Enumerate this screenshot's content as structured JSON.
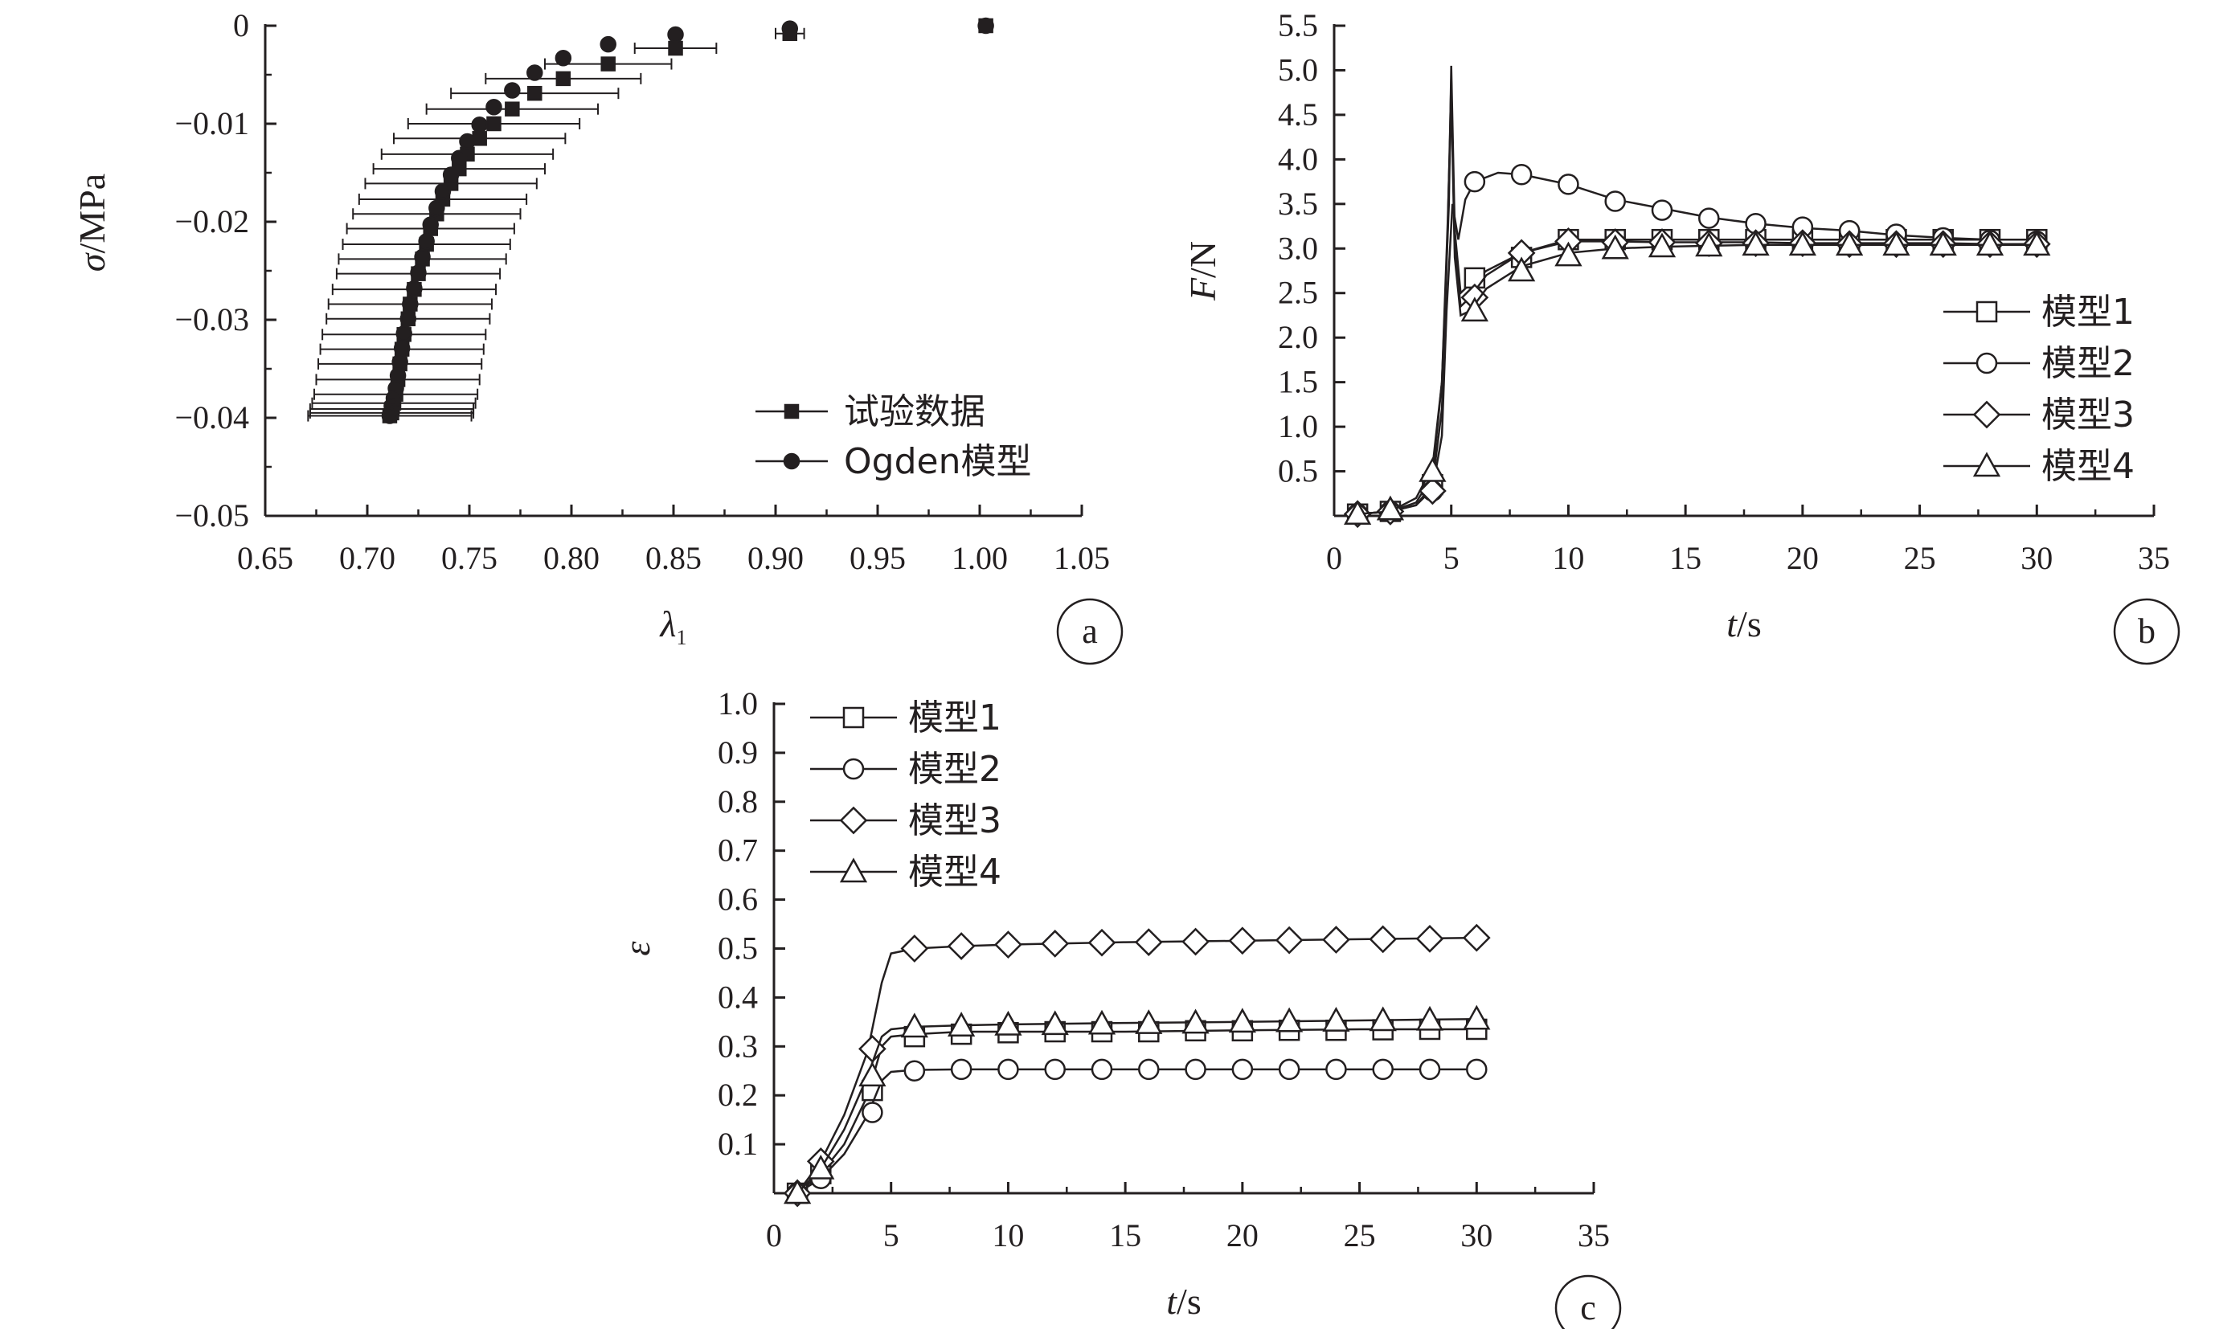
{
  "chart_data": [
    {
      "id": "a",
      "type": "scatter",
      "panel_label": "a",
      "xlabel_sym": "λ",
      "xlabel_sub": "1",
      "ylabel_sym": "σ",
      "ylabel_unit": "/MPa",
      "xlim": [
        0.65,
        1.05
      ],
      "ylim": [
        -0.05,
        0
      ],
      "xticks": [
        0.65,
        0.7,
        0.75,
        0.8,
        0.85,
        0.9,
        0.95,
        1.0,
        1.05
      ],
      "xtick_labels": [
        "0.65",
        "0.70",
        "0.75",
        "0.80",
        "0.85",
        "0.90",
        "0.95",
        "1.00",
        "1.05"
      ],
      "yticks": [
        0,
        -0.01,
        -0.02,
        -0.03,
        -0.04,
        -0.05
      ],
      "ytick_labels": [
        "0",
        "−0.01",
        "−0.02",
        "−0.03",
        "−0.04",
        "−0.05"
      ],
      "legend": {
        "position": "bottom-right",
        "entries": [
          "试验数据",
          "Ogden模型"
        ]
      },
      "series": [
        {
          "name": "试验数据",
          "marker": "square",
          "filled": true,
          "x": [
            1.003,
            0.907,
            0.851,
            0.818,
            0.796,
            0.782,
            0.771,
            0.762,
            0.755,
            0.749,
            0.745,
            0.741,
            0.737,
            0.734,
            0.731,
            0.729,
            0.727,
            0.725,
            0.723,
            0.721,
            0.72,
            0.718,
            0.717,
            0.716,
            0.715,
            0.714,
            0.713,
            0.712,
            0.712,
            0.711
          ],
          "y": [
            0.0,
            -0.0008,
            -0.0023,
            -0.0039,
            -0.0054,
            -0.0069,
            -0.0085,
            -0.01,
            -0.0115,
            -0.0131,
            -0.0146,
            -0.0161,
            -0.0177,
            -0.0192,
            -0.0207,
            -0.0223,
            -0.0238,
            -0.0253,
            -0.0269,
            -0.0284,
            -0.0299,
            -0.0315,
            -0.033,
            -0.0345,
            -0.0361,
            -0.0376,
            -0.0385,
            -0.0391,
            -0.0395,
            -0.0398
          ],
          "xerr": [
            0.0,
            0.007,
            0.02,
            0.031,
            0.038,
            0.041,
            0.042,
            0.042,
            0.042,
            0.042,
            0.042,
            0.042,
            0.041,
            0.041,
            0.041,
            0.041,
            0.041,
            0.04,
            0.04,
            0.04,
            0.04,
            0.04,
            0.04,
            0.04,
            0.04,
            0.04,
            0.04,
            0.04,
            0.04,
            0.04
          ]
        },
        {
          "name": "Ogden模型",
          "marker": "circle",
          "filled": true,
          "x": [
            1.003,
            0.907,
            0.851,
            0.818,
            0.796,
            0.782,
            0.771,
            0.762,
            0.755,
            0.749,
            0.745,
            0.741,
            0.737,
            0.734,
            0.731,
            0.729,
            0.727,
            0.725,
            0.723,
            0.721,
            0.72,
            0.718,
            0.717,
            0.716,
            0.715,
            0.714,
            0.713,
            0.712,
            0.712,
            0.711
          ],
          "y": [
            0.0,
            -0.0003,
            -0.0009,
            -0.0019,
            -0.0033,
            -0.0048,
            -0.0066,
            -0.0083,
            -0.0101,
            -0.0118,
            -0.0135,
            -0.0152,
            -0.0169,
            -0.0186,
            -0.0203,
            -0.022,
            -0.0236,
            -0.0252,
            -0.0268,
            -0.0284,
            -0.0299,
            -0.0314,
            -0.0329,
            -0.0343,
            -0.0357,
            -0.037,
            -0.038,
            -0.0388,
            -0.0394,
            -0.0398
          ]
        }
      ]
    },
    {
      "id": "b",
      "type": "line",
      "panel_label": "b",
      "xlabel_sym": "t",
      "xlabel_unit": "/s",
      "ylabel_sym": "F",
      "ylabel_unit": "/N",
      "xlim": [
        0,
        35
      ],
      "ylim": [
        0,
        5.5
      ],
      "xticks": [
        0,
        5,
        10,
        15,
        20,
        25,
        30,
        35
      ],
      "xtick_labels": [
        "0",
        "5",
        "10",
        "15",
        "20",
        "25",
        "30",
        "35"
      ],
      "yticks": [
        0.5,
        1.0,
        1.5,
        2.0,
        2.5,
        3.0,
        3.5,
        4.0,
        4.5,
        5.0,
        5.5
      ],
      "ytick_labels": [
        "0.5",
        "1.0",
        "1.5",
        "2.0",
        "2.5",
        "3.0",
        "3.5",
        "4.0",
        "4.5",
        "5.0",
        "5.5"
      ],
      "legend": {
        "position": "right",
        "entries": [
          "模型1",
          "模型2",
          "模型3",
          "模型4"
        ]
      },
      "series": [
        {
          "name": "模型1",
          "marker": "square",
          "curve_x": [
            1,
            2.4,
            3.5,
            4.2,
            4.6,
            4.9,
            5.0,
            5.15,
            5.4,
            5.8,
            6.5,
            8,
            10,
            12,
            14,
            16,
            18,
            20,
            22,
            24,
            26,
            28,
            30
          ],
          "curve_y": [
            0.02,
            0.05,
            0.15,
            0.45,
            1.5,
            3.5,
            5.05,
            3.2,
            2.5,
            2.6,
            2.75,
            2.95,
            3.1,
            3.1,
            3.1,
            3.1,
            3.1,
            3.1,
            3.1,
            3.1,
            3.1,
            3.1,
            3.1
          ],
          "marker_x": [
            1,
            2.4,
            4.2,
            6,
            8,
            10,
            12,
            14,
            16,
            18,
            20,
            22,
            24,
            26,
            28,
            30
          ],
          "marker_y": [
            0.02,
            0.05,
            0.35,
            2.67,
            2.9,
            3.1,
            3.1,
            3.1,
            3.1,
            3.1,
            3.1,
            3.1,
            3.1,
            3.1,
            3.1,
            3.1
          ]
        },
        {
          "name": "模型2",
          "marker": "circle",
          "curve_x": [
            1,
            2.4,
            3.5,
            4.2,
            4.6,
            4.8,
            5.05,
            5.3,
            5.6,
            6,
            7,
            8,
            10,
            12,
            14,
            16,
            18,
            20,
            22,
            24,
            26,
            28,
            30
          ],
          "curve_y": [
            0.02,
            0.05,
            0.12,
            0.3,
            0.9,
            2.3,
            3.5,
            3.1,
            3.55,
            3.75,
            3.85,
            3.83,
            3.72,
            3.55,
            3.45,
            3.35,
            3.28,
            3.23,
            3.2,
            3.15,
            3.12,
            3.1,
            3.1
          ],
          "marker_x": [
            1,
            2.4,
            4.2,
            6,
            8,
            10,
            12,
            14,
            16,
            18,
            20,
            22,
            24,
            26,
            28,
            30
          ],
          "marker_y": [
            0.02,
            0.05,
            0.28,
            3.75,
            3.83,
            3.72,
            3.53,
            3.43,
            3.34,
            3.28,
            3.24,
            3.2,
            3.16,
            3.12,
            3.09,
            3.08
          ]
        },
        {
          "name": "模型3",
          "marker": "diamond",
          "curve_x": [
            1,
            2.4,
            3.5,
            4.2,
            4.6,
            4.85,
            5.0,
            5.15,
            5.4,
            5.8,
            6.5,
            8,
            10,
            12,
            14,
            16,
            18,
            20,
            22,
            24,
            26,
            28,
            30
          ],
          "curve_y": [
            0.02,
            0.05,
            0.12,
            0.35,
            1.2,
            3.2,
            4.9,
            3.0,
            2.35,
            2.45,
            2.7,
            2.95,
            3.08,
            3.08,
            3.07,
            3.07,
            3.07,
            3.06,
            3.06,
            3.06,
            3.06,
            3.05,
            3.05
          ],
          "marker_x": [
            1,
            2.4,
            4.2,
            6,
            8,
            10,
            12,
            14,
            16,
            18,
            20,
            22,
            24,
            26,
            28,
            30
          ],
          "marker_y": [
            0.02,
            0.05,
            0.28,
            2.45,
            2.95,
            3.08,
            3.07,
            3.07,
            3.06,
            3.06,
            3.06,
            3.05,
            3.05,
            3.05,
            3.05,
            3.05
          ]
        },
        {
          "name": "模型4",
          "marker": "triangle",
          "curve_x": [
            1,
            2.4,
            3.5,
            4.2,
            4.6,
            4.85,
            5.0,
            5.15,
            5.4,
            5.8,
            6.5,
            8,
            10,
            12,
            14,
            16,
            18,
            20,
            22,
            24,
            26,
            28,
            30
          ],
          "curve_y": [
            0.02,
            0.05,
            0.2,
            0.55,
            1.5,
            3.3,
            4.7,
            2.9,
            2.25,
            2.3,
            2.55,
            2.8,
            2.95,
            3.0,
            3.02,
            3.03,
            3.04,
            3.04,
            3.04,
            3.04,
            3.04,
            3.04,
            3.04
          ],
          "marker_x": [
            1,
            2.4,
            4.2,
            6,
            8,
            10,
            12,
            14,
            16,
            18,
            20,
            22,
            24,
            26,
            28,
            30
          ],
          "marker_y": [
            0.02,
            0.07,
            0.5,
            2.3,
            2.75,
            2.92,
            3.0,
            3.02,
            3.03,
            3.04,
            3.04,
            3.04,
            3.04,
            3.04,
            3.04,
            3.04
          ]
        }
      ]
    },
    {
      "id": "c",
      "type": "line",
      "panel_label": "c",
      "xlabel_sym": "t",
      "xlabel_unit": "/s",
      "ylabel_sym": "ε",
      "xlim": [
        0,
        35
      ],
      "ylim": [
        0,
        1.0
      ],
      "xticks": [
        0,
        5,
        10,
        15,
        20,
        25,
        30,
        35
      ],
      "xtick_labels": [
        "0",
        "5",
        "10",
        "15",
        "20",
        "25",
        "30",
        "35"
      ],
      "yticks": [
        0.1,
        0.2,
        0.3,
        0.4,
        0.5,
        0.6,
        0.7,
        0.8,
        0.9,
        1.0
      ],
      "ytick_labels": [
        "0.1",
        "0.2",
        "0.3",
        "0.4",
        "0.5",
        "0.6",
        "0.7",
        "0.8",
        "0.9",
        "1.0"
      ],
      "legend": {
        "position": "top-left",
        "entries": [
          "模型1",
          "模型2",
          "模型3",
          "模型4"
        ]
      },
      "series": [
        {
          "name": "模型1",
          "marker": "square",
          "curve_x": [
            1,
            2,
            3,
            4,
            4.6,
            5,
            6,
            8,
            10,
            15,
            20,
            25,
            30
          ],
          "curve_y": [
            0,
            0.04,
            0.1,
            0.2,
            0.3,
            0.32,
            0.325,
            0.33,
            0.33,
            0.33,
            0.333,
            0.335,
            0.335
          ],
          "marker_x": [
            1,
            2,
            4.2,
            6,
            8,
            10,
            12,
            14,
            16,
            18,
            20,
            22,
            24,
            26,
            28,
            30
          ],
          "marker_y": [
            0,
            0.04,
            0.21,
            0.32,
            0.325,
            0.328,
            0.33,
            0.33,
            0.33,
            0.332,
            0.332,
            0.333,
            0.333,
            0.334,
            0.335,
            0.335
          ]
        },
        {
          "name": "模型2",
          "marker": "circle",
          "curve_x": [
            1,
            2,
            3,
            4,
            4.6,
            5,
            6,
            8,
            10,
            15,
            20,
            25,
            30
          ],
          "curve_y": [
            0,
            0.03,
            0.08,
            0.16,
            0.23,
            0.248,
            0.252,
            0.253,
            0.253,
            0.253,
            0.253,
            0.253,
            0.253
          ],
          "marker_x": [
            1,
            2,
            4.2,
            6,
            8,
            10,
            12,
            14,
            16,
            18,
            20,
            22,
            24,
            26,
            28,
            30
          ],
          "marker_y": [
            0,
            0.03,
            0.165,
            0.25,
            0.253,
            0.253,
            0.253,
            0.253,
            0.253,
            0.253,
            0.253,
            0.253,
            0.253,
            0.253,
            0.253,
            0.253
          ]
        },
        {
          "name": "模型3",
          "marker": "diamond",
          "curve_x": [
            1,
            2,
            3,
            4,
            4.6,
            5,
            6,
            8,
            10,
            15,
            20,
            25,
            30
          ],
          "curve_y": [
            0,
            0.065,
            0.16,
            0.29,
            0.43,
            0.49,
            0.5,
            0.505,
            0.508,
            0.513,
            0.516,
            0.519,
            0.522
          ],
          "marker_x": [
            1,
            2,
            4.2,
            6,
            8,
            10,
            12,
            14,
            16,
            18,
            20,
            22,
            24,
            26,
            28,
            30
          ],
          "marker_y": [
            0,
            0.065,
            0.295,
            0.5,
            0.505,
            0.508,
            0.51,
            0.512,
            0.513,
            0.514,
            0.516,
            0.517,
            0.518,
            0.519,
            0.52,
            0.522
          ]
        },
        {
          "name": "模型4",
          "marker": "triangle",
          "curve_x": [
            1,
            2,
            3,
            4,
            4.6,
            5,
            6,
            8,
            10,
            15,
            20,
            25,
            30
          ],
          "curve_y": [
            0,
            0.05,
            0.13,
            0.24,
            0.32,
            0.335,
            0.34,
            0.343,
            0.345,
            0.348,
            0.35,
            0.353,
            0.356
          ],
          "marker_x": [
            1,
            2,
            4.2,
            6,
            8,
            10,
            12,
            14,
            16,
            18,
            20,
            22,
            24,
            26,
            28,
            30
          ],
          "marker_y": [
            0,
            0.05,
            0.24,
            0.34,
            0.342,
            0.344,
            0.345,
            0.346,
            0.347,
            0.348,
            0.35,
            0.351,
            0.352,
            0.353,
            0.354,
            0.356
          ]
        }
      ]
    }
  ]
}
